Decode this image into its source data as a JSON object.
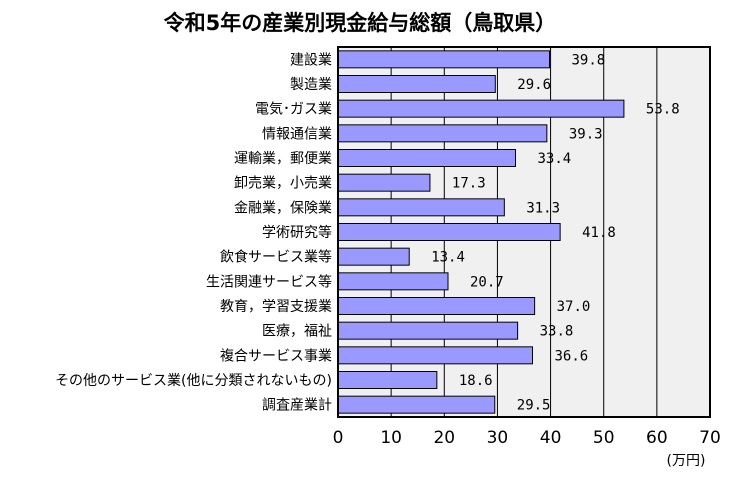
{
  "chart_data": {
    "type": "bar",
    "orientation": "horizontal",
    "title": "令和5年の産業別現金給与総額（鳥取県）",
    "unit_label": "(万円)",
    "categories": [
      "建設業",
      "製造業",
      "電気･ガス業",
      "情報通信業",
      "運輸業，郵便業",
      "卸売業，小売業",
      "金融業，保険業",
      "学術研究等",
      "飲食サービス業等",
      "生活関連サービス等",
      "教育，学習支援業",
      "医療，福祉",
      "複合サービス事業",
      "その他のサービス業(他に分類されないもの)",
      "調査産業計"
    ],
    "values": [
      39.8,
      29.6,
      53.8,
      39.3,
      33.4,
      17.3,
      31.3,
      41.8,
      13.4,
      20.7,
      37.0,
      33.8,
      36.6,
      18.6,
      29.5
    ],
    "value_labels": [
      "39.8",
      "29.6",
      "53.8",
      "39.3",
      "33.4",
      "17.3",
      "31.3",
      "41.8",
      "13.4",
      "20.7",
      "37.0",
      "33.8",
      "36.6",
      "18.6",
      "29.5"
    ],
    "xlim": [
      0,
      70
    ],
    "x_ticks": [
      0,
      10,
      20,
      30,
      40,
      50,
      60,
      70
    ],
    "x_tick_labels": [
      "0",
      "10",
      "20",
      "30",
      "40",
      "50",
      "60",
      "70"
    ],
    "grid": true,
    "colors": {
      "bar_fill": "#9999ff",
      "bar_stroke": "#000000",
      "plot_background": "#f0f0f0",
      "gridline": "#000000"
    }
  }
}
